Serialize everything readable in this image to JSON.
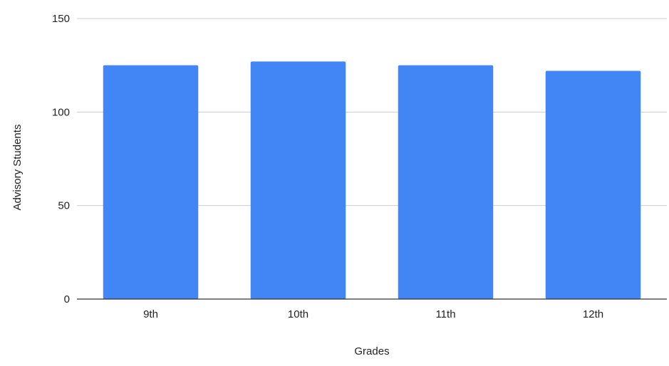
{
  "chart_data": {
    "type": "bar",
    "title": "",
    "xlabel": "Grades",
    "ylabel": "Advisory Students",
    "categories": [
      "9th",
      "10th",
      "11th",
      "12th"
    ],
    "values": [
      125,
      127,
      125,
      122
    ],
    "ylim": [
      0,
      150
    ],
    "yticks": [
      0,
      50,
      100,
      150
    ],
    "grid": true,
    "legend": "none",
    "bar_color": "#4285F4",
    "grid_color": "#cccccc",
    "axis_color": "#333333"
  }
}
